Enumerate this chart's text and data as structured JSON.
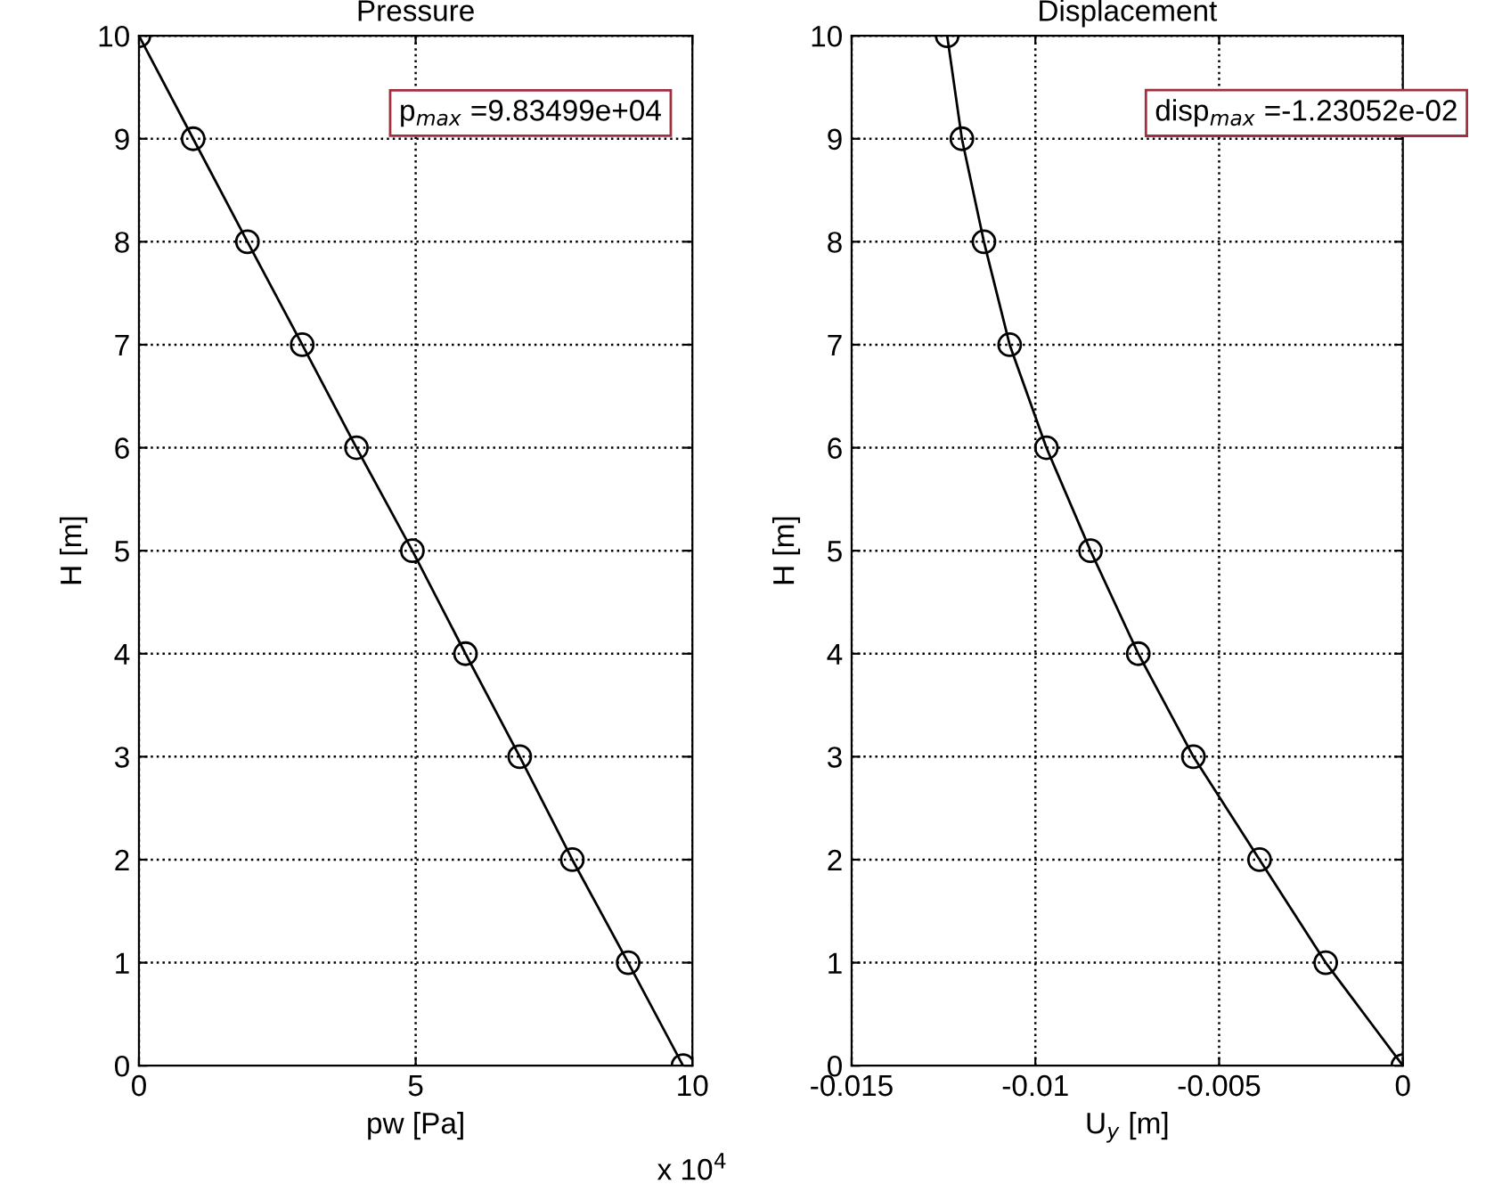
{
  "chart_data": [
    {
      "type": "line",
      "title": "Pressure",
      "xlabel": "pw [Pa]",
      "ylabel": "H [m]",
      "x": [
        0,
        0.98,
        1.96,
        2.95,
        3.93,
        4.94,
        5.9,
        6.88,
        7.83,
        8.84,
        9.83
      ],
      "series": [
        {
          "color": "#000000",
          "values": [
            10,
            9,
            8,
            7,
            6,
            5,
            4,
            3,
            2,
            1,
            0
          ]
        }
      ],
      "xlim": [
        0,
        10
      ],
      "xticks": [
        0,
        5,
        10
      ],
      "ylim": [
        0,
        10
      ],
      "yticks": [
        0,
        1,
        2,
        3,
        4,
        5,
        6,
        7,
        8,
        9,
        10
      ],
      "grid": true,
      "marker": "circle",
      "line_style": "solid",
      "annotations": [
        "p$_{max}$ =9.83499e+04",
        "x 10$^{4}$"
      ]
    },
    {
      "type": "line",
      "title": "Displacement",
      "xlabel": "U$_{y}$ [m]",
      "ylabel": "H [m]",
      "x": [
        -0.0124,
        -0.012,
        -0.0114,
        -0.0107,
        -0.0097,
        -0.0085,
        -0.0072,
        -0.0057,
        -0.0039,
        -0.0021,
        0
      ],
      "series": [
        {
          "color": "#000000",
          "values": [
            10,
            9,
            8,
            7,
            6,
            5,
            4,
            3,
            2,
            1,
            0
          ]
        }
      ],
      "xlim": [
        -0.015,
        0
      ],
      "xticks": [
        -0.015,
        -0.01,
        -0.005,
        0
      ],
      "ylim": [
        0,
        10
      ],
      "yticks": [
        0,
        1,
        2,
        3,
        4,
        5,
        6,
        7,
        8,
        9,
        10
      ],
      "grid": true,
      "marker": "circle",
      "line_style": "solid",
      "annotations": [
        "disp$_{max}$ =-1.23052e-02"
      ]
    }
  ]
}
